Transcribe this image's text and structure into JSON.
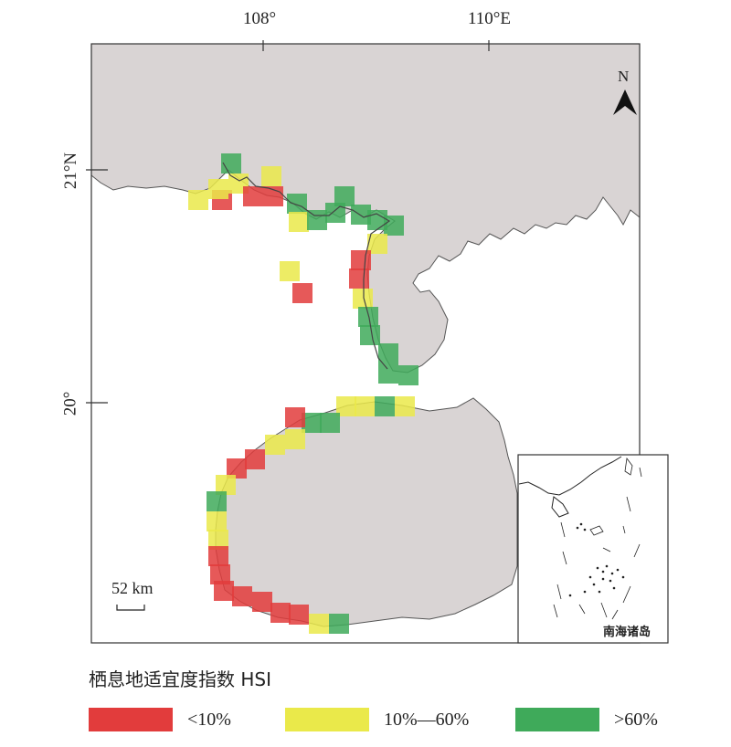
{
  "axes": {
    "lon_labels": [
      "108°",
      "110°E"
    ],
    "lat_labels": [
      "21°N",
      "20°"
    ]
  },
  "north_arrow": {
    "label": "N",
    "icon": "north-arrow-icon"
  },
  "scale_bar": {
    "label": "52 km"
  },
  "inset": {
    "caption": "南海诸岛"
  },
  "legend": {
    "title": "栖息地适宜度指数 HSI",
    "items": [
      {
        "label": "<10%",
        "color": "#e23c3c"
      },
      {
        "label": "10%—60%",
        "color": "#eae94a"
      },
      {
        "label": ">60%",
        "color": "#3faa5a"
      }
    ]
  },
  "colors": {
    "land": "#d9d4d4",
    "low": "#e23c3c",
    "mid": "#eae94a",
    "high": "#3faa5a"
  }
}
